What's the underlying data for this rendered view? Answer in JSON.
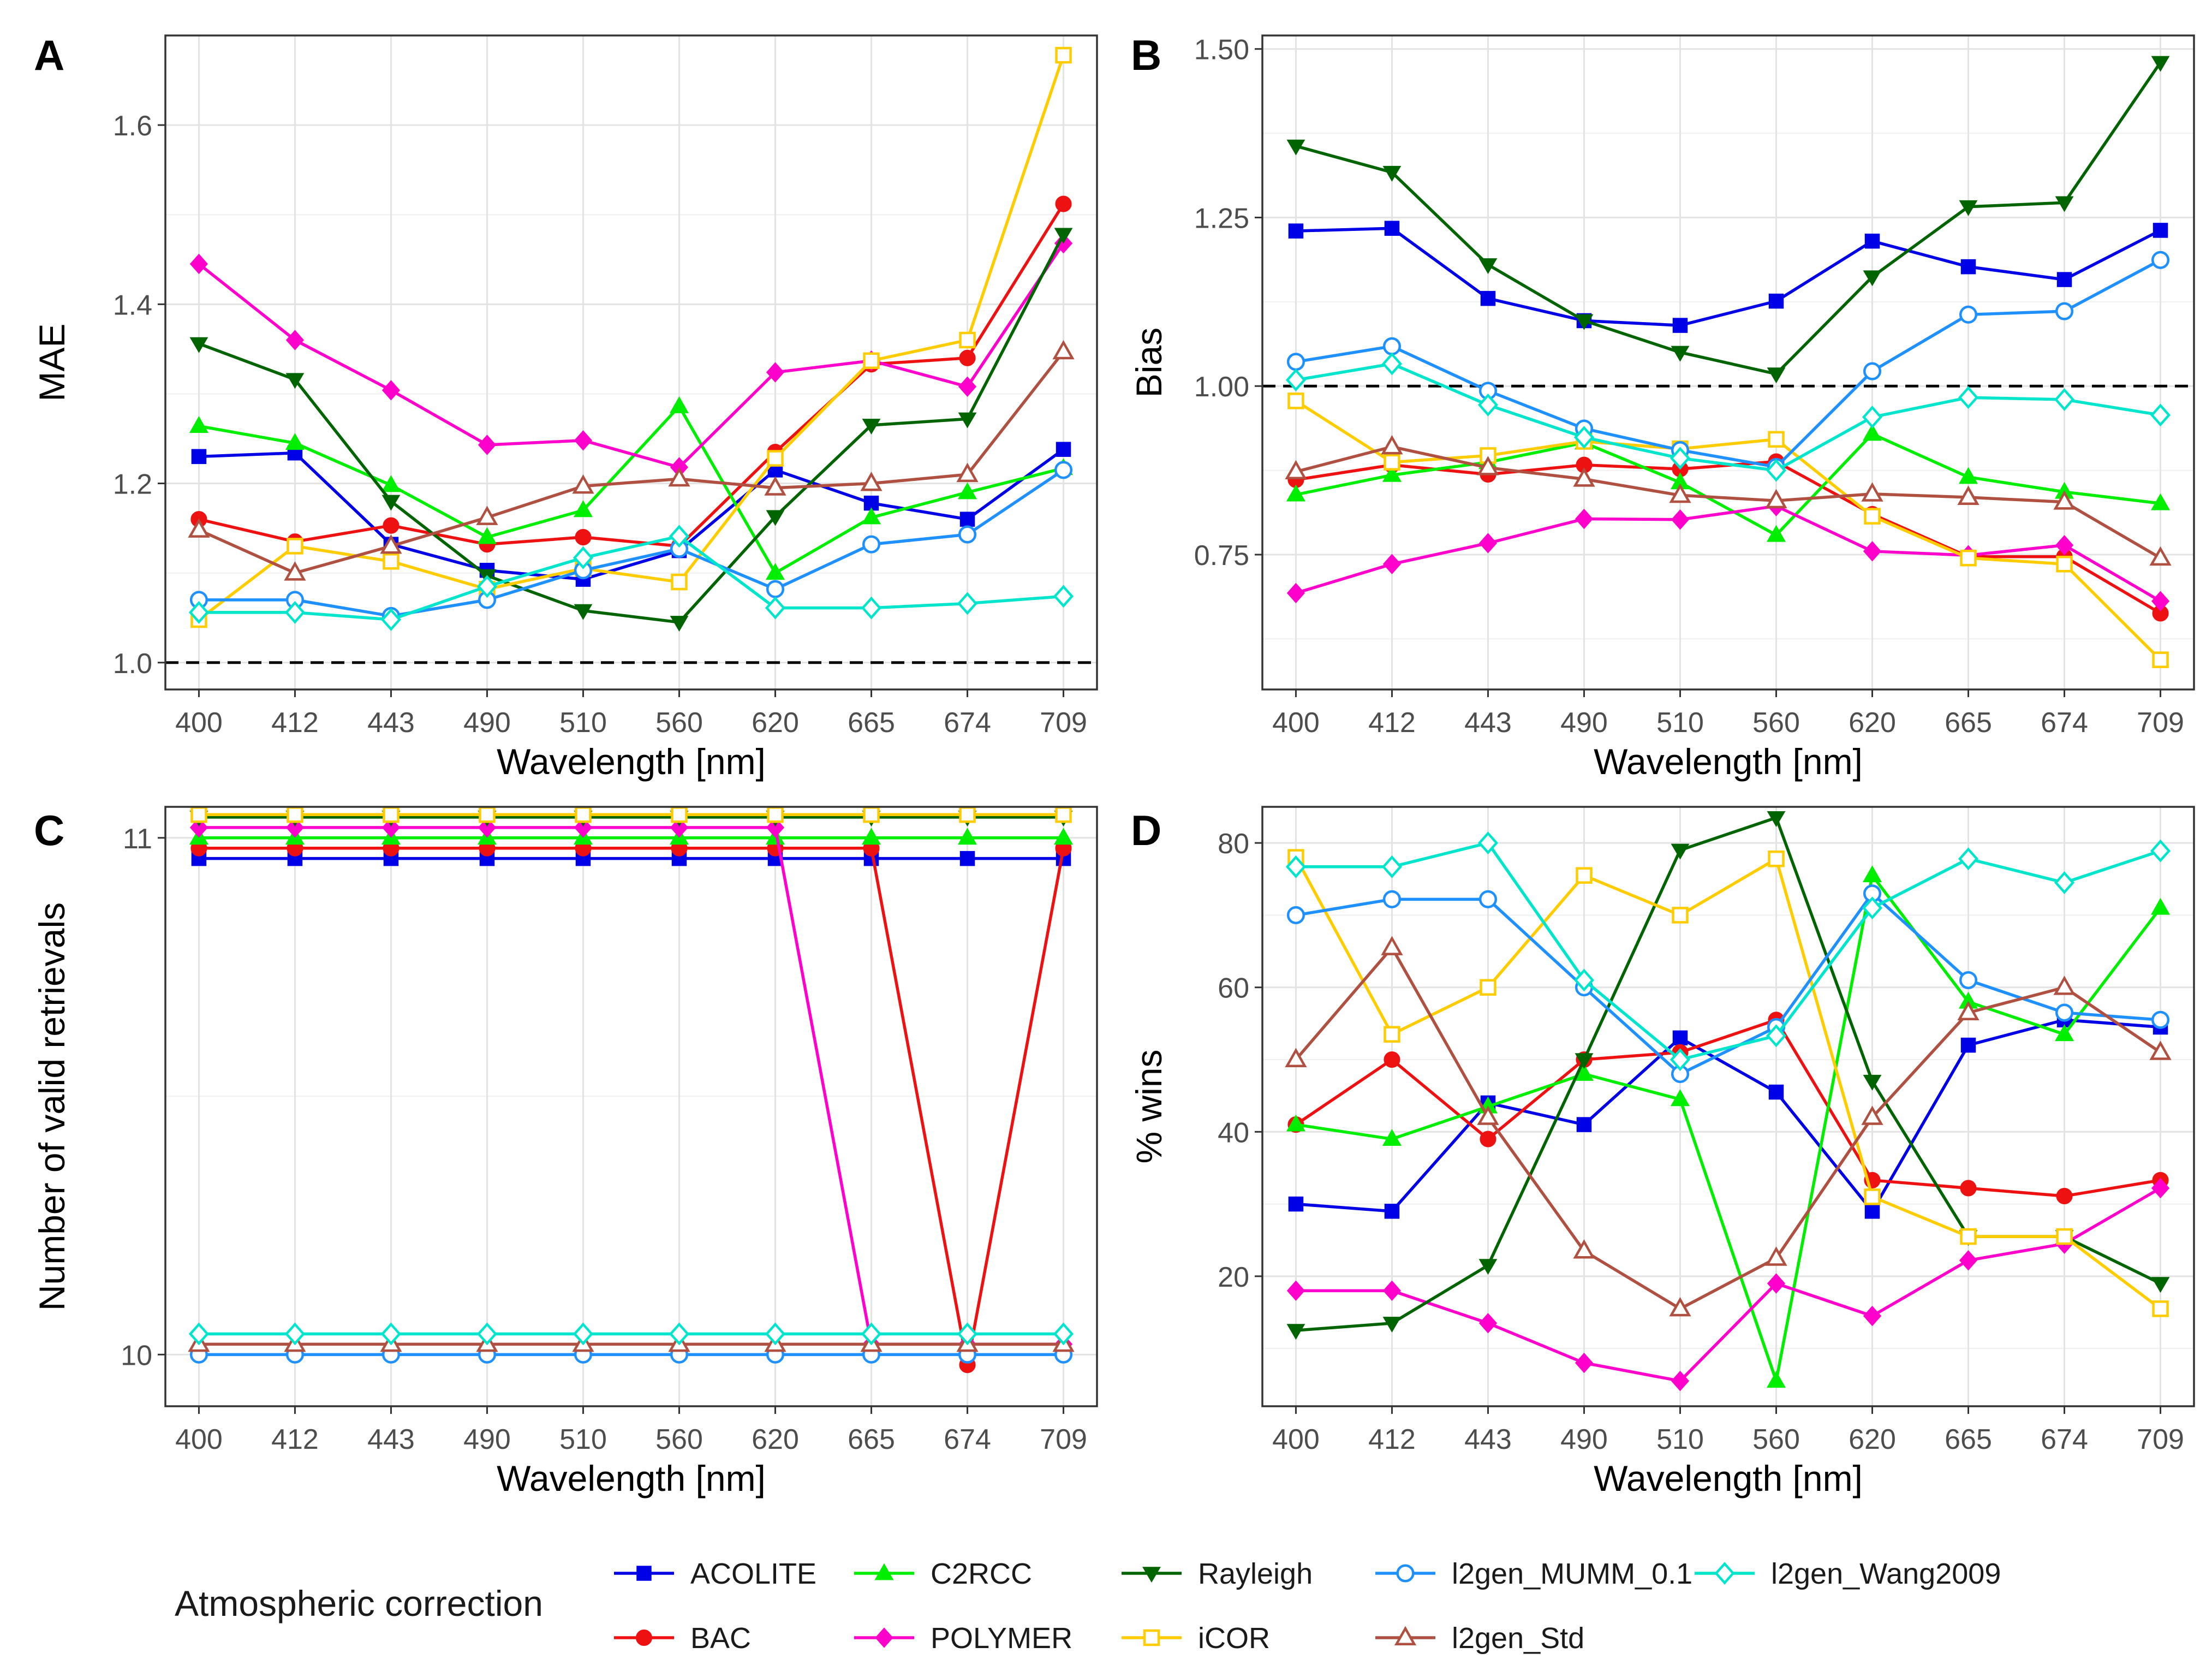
{
  "figure": {
    "x_axis_label": "Wavelength [nm]",
    "legend_title": "Atmospheric correction"
  },
  "chart_data": [
    {
      "panel": "A",
      "type": "line",
      "xlabel": "Wavelength [nm]",
      "ylabel": "MAE",
      "categories": [
        "400",
        "412",
        "443",
        "490",
        "510",
        "560",
        "620",
        "665",
        "674",
        "709"
      ],
      "ylim": [
        0.97,
        1.7
      ],
      "yticks": [
        1.0,
        1.2,
        1.4,
        1.6
      ],
      "ytick_labels": [
        "1.0",
        "1.2",
        "1.4",
        "1.6"
      ],
      "reference_line": 1.0,
      "series": [
        {
          "name": "ACOLITE",
          "values": [
            1.23,
            1.234,
            1.132,
            1.103,
            1.093,
            1.125,
            1.215,
            1.178,
            1.16,
            1.238
          ]
        },
        {
          "name": "BAC",
          "values": [
            1.16,
            1.135,
            1.153,
            1.132,
            1.14,
            1.13,
            1.235,
            1.333,
            1.34,
            1.512
          ]
        },
        {
          "name": "C2RCC",
          "values": [
            1.264,
            1.245,
            1.198,
            1.14,
            1.17,
            1.286,
            1.1,
            1.162,
            1.19,
            1.217
          ]
        },
        {
          "name": "POLYMER",
          "values": [
            1.445,
            1.36,
            1.304,
            1.243,
            1.248,
            1.218,
            1.324,
            1.337,
            1.308,
            1.468
          ]
        },
        {
          "name": "Rayleigh",
          "values": [
            1.356,
            1.316,
            1.18,
            1.097,
            1.058,
            1.045,
            1.163,
            1.265,
            1.272,
            1.478
          ]
        },
        {
          "name": "iCOR",
          "values": [
            1.048,
            1.13,
            1.113,
            1.082,
            1.105,
            1.09,
            1.228,
            1.337,
            1.36,
            1.678
          ]
        },
        {
          "name": "l2gen_MUMM_0.1",
          "values": [
            1.07,
            1.07,
            1.052,
            1.07,
            1.103,
            1.127,
            1.082,
            1.132,
            1.143,
            1.215
          ]
        },
        {
          "name": "l2gen_Std",
          "values": [
            1.148,
            1.1,
            1.13,
            1.162,
            1.197,
            1.205,
            1.195,
            1.2,
            1.21,
            1.347
          ]
        },
        {
          "name": "l2gen_Wang2009",
          "values": [
            1.056,
            1.056,
            1.048,
            1.085,
            1.117,
            1.141,
            1.061,
            1.061,
            1.066,
            1.074
          ]
        }
      ]
    },
    {
      "panel": "B",
      "type": "line",
      "xlabel": "Wavelength [nm]",
      "ylabel": "Bias",
      "categories": [
        "400",
        "412",
        "443",
        "490",
        "510",
        "560",
        "620",
        "665",
        "674",
        "709"
      ],
      "ylim": [
        0.55,
        1.52
      ],
      "yticks": [
        0.75,
        1.0,
        1.25,
        1.5
      ],
      "ytick_labels": [
        "0.75",
        "1.00",
        "1.25",
        "1.50"
      ],
      "reference_line": 1.0,
      "series": [
        {
          "name": "ACOLITE",
          "values": [
            1.23,
            1.234,
            1.13,
            1.097,
            1.09,
            1.126,
            1.215,
            1.177,
            1.158,
            1.231
          ]
        },
        {
          "name": "BAC",
          "values": [
            0.861,
            0.883,
            0.869,
            0.883,
            0.877,
            0.888,
            0.81,
            0.747,
            0.747,
            0.663
          ]
        },
        {
          "name": "C2RCC",
          "values": [
            0.839,
            0.868,
            0.887,
            0.916,
            0.857,
            0.779,
            0.929,
            0.865,
            0.843,
            0.826
          ]
        },
        {
          "name": "POLYMER",
          "values": [
            0.693,
            0.736,
            0.767,
            0.803,
            0.802,
            0.822,
            0.755,
            0.749,
            0.764,
            0.681
          ]
        },
        {
          "name": "Rayleigh",
          "values": [
            1.356,
            1.317,
            1.18,
            1.097,
            1.05,
            1.018,
            1.162,
            1.266,
            1.272,
            1.48
          ]
        },
        {
          "name": "iCOR",
          "values": [
            0.978,
            0.887,
            0.897,
            0.918,
            0.907,
            0.921,
            0.807,
            0.745,
            0.736,
            0.594
          ]
        },
        {
          "name": "l2gen_MUMM_0.1",
          "values": [
            1.036,
            1.059,
            0.993,
            0.937,
            0.905,
            0.88,
            1.022,
            1.106,
            1.111,
            1.187
          ]
        },
        {
          "name": "l2gen_Std",
          "values": [
            0.873,
            0.91,
            0.879,
            0.862,
            0.838,
            0.83,
            0.84,
            0.835,
            0.828,
            0.745
          ]
        },
        {
          "name": "l2gen_Wang2009",
          "values": [
            1.009,
            1.033,
            0.972,
            0.924,
            0.893,
            0.875,
            0.954,
            0.983,
            0.98,
            0.957
          ]
        }
      ]
    },
    {
      "panel": "C",
      "type": "line",
      "xlabel": "Wavelength [nm]",
      "ylabel": "Number of valid retrievals",
      "categories": [
        "400",
        "412",
        "443",
        "490",
        "510",
        "560",
        "620",
        "665",
        "674",
        "709"
      ],
      "ylim": [
        9.9,
        11.06
      ],
      "yticks": [
        10,
        11
      ],
      "ytick_labels": [
        "10",
        "11"
      ],
      "reference_line": null,
      "series": [
        {
          "name": "ACOLITE",
          "values": [
            11,
            11,
            11,
            11,
            11,
            11,
            11,
            11,
            11,
            11
          ],
          "display_offset": -0.04
        },
        {
          "name": "BAC",
          "values": [
            11,
            11,
            11,
            11,
            11,
            11,
            11,
            11,
            10,
            11
          ],
          "display_offset": -0.02
        },
        {
          "name": "C2RCC",
          "values": [
            11,
            11,
            11,
            11,
            11,
            11,
            11,
            11,
            11,
            11
          ],
          "display_offset": 0
        },
        {
          "name": "POLYMER",
          "values": [
            11,
            11,
            11,
            11,
            11,
            11,
            11,
            10,
            10,
            10
          ],
          "display_offset": 0.02
        },
        {
          "name": "Rayleigh",
          "values": [
            11,
            11,
            11,
            11,
            11,
            11,
            11,
            11,
            11,
            11
          ],
          "display_offset": 0.04
        },
        {
          "name": "iCOR",
          "values": [
            11,
            11,
            11,
            11,
            11,
            11,
            11,
            11,
            11,
            11
          ],
          "display_offset": 0.045
        },
        {
          "name": "l2gen_MUMM_0.1",
          "values": [
            10,
            10,
            10,
            10,
            10,
            10,
            10,
            10,
            10,
            10
          ],
          "display_offset": 0
        },
        {
          "name": "l2gen_Std",
          "values": [
            10,
            10,
            10,
            10,
            10,
            10,
            10,
            10,
            10,
            10
          ],
          "display_offset": 0.02
        },
        {
          "name": "l2gen_Wang2009",
          "values": [
            10,
            10,
            10,
            10,
            10,
            10,
            10,
            10,
            10,
            10
          ],
          "display_offset": 0.04
        }
      ]
    },
    {
      "panel": "D",
      "type": "line",
      "xlabel": "Wavelength [nm]",
      "ylabel": "% wins",
      "categories": [
        "400",
        "412",
        "443",
        "490",
        "510",
        "560",
        "620",
        "665",
        "674",
        "709"
      ],
      "ylim": [
        2,
        85
      ],
      "yticks": [
        20,
        40,
        60,
        80
      ],
      "ytick_labels": [
        "20",
        "40",
        "60",
        "80"
      ],
      "reference_line": null,
      "series": [
        {
          "name": "ACOLITE",
          "values": [
            30,
            29,
            44,
            41,
            53,
            45.5,
            29,
            52,
            55.5,
            54.5
          ]
        },
        {
          "name": "BAC",
          "values": [
            41,
            50,
            39,
            50,
            51,
            55.5,
            33.3,
            32.2,
            31.1,
            33.3
          ]
        },
        {
          "name": "C2RCC",
          "values": [
            41,
            39,
            43.5,
            48,
            44.5,
            5.5,
            75.5,
            58,
            53.5,
            71
          ]
        },
        {
          "name": "POLYMER",
          "values": [
            18,
            18,
            13.5,
            8,
            5.5,
            19,
            14.5,
            22.2,
            24.5,
            32.2
          ]
        },
        {
          "name": "Rayleigh",
          "values": [
            12.5,
            13.5,
            21.5,
            50,
            79,
            83.5,
            47,
            25.5,
            25.5,
            19
          ]
        },
        {
          "name": "iCOR",
          "values": [
            78,
            53.5,
            60,
            75.5,
            70,
            77.8,
            31,
            25.5,
            25.5,
            15.5
          ]
        },
        {
          "name": "l2gen_MUMM_0.1",
          "values": [
            70,
            72.2,
            72.2,
            60,
            48,
            54.5,
            73,
            61,
            56.5,
            55.5
          ]
        },
        {
          "name": "l2gen_Std",
          "values": [
            50,
            65.5,
            42,
            23.5,
            15.5,
            22.5,
            42,
            56.5,
            60,
            51
          ]
        },
        {
          "name": "l2gen_Wang2009",
          "values": [
            76.7,
            76.7,
            80,
            61,
            50,
            53.3,
            71,
            77.8,
            74.5,
            78.9
          ]
        }
      ]
    }
  ],
  "legend_series": [
    {
      "name": "ACOLITE",
      "color": "#0000e6",
      "marker": "square-filled"
    },
    {
      "name": "BAC",
      "color": "#ee1111",
      "marker": "circle-filled"
    },
    {
      "name": "C2RCC",
      "color": "#00ee00",
      "marker": "triangle-filled"
    },
    {
      "name": "POLYMER",
      "color": "#ff00cc",
      "marker": "diamond-filled"
    },
    {
      "name": "Rayleigh",
      "color": "#006400",
      "marker": "triangle-down-filled"
    },
    {
      "name": "iCOR",
      "color": "#ffcc00",
      "marker": "square-open"
    },
    {
      "name": "l2gen_MUMM_0.1",
      "color": "#1e90ff",
      "marker": "circle-open"
    },
    {
      "name": "l2gen_Std",
      "color": "#b05040",
      "marker": "triangle-open"
    },
    {
      "name": "l2gen_Wang2009",
      "color": "#00e5cc",
      "marker": "diamond-open"
    }
  ]
}
